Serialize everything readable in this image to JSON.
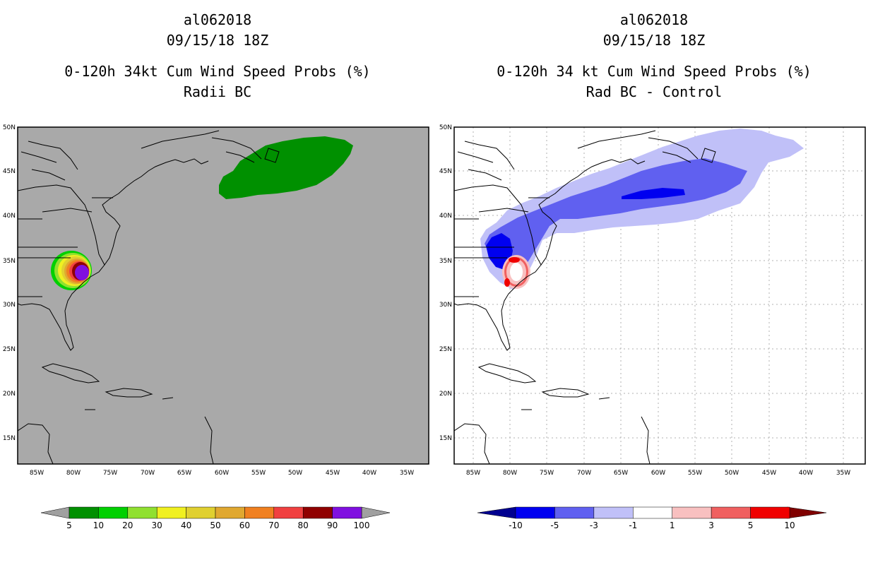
{
  "left_panel": {
    "storm_id": "al062018",
    "datetime": "09/15/18 18Z",
    "product": "0-120h 34kt Cum Wind Speed Probs (%)",
    "subtitle": "Radii BC",
    "background_color": "#a9a9a9",
    "colorbar": {
      "labels": [
        "5",
        "10",
        "20",
        "30",
        "40",
        "50",
        "60",
        "70",
        "80",
        "90",
        "100"
      ],
      "colors": [
        "#009000",
        "#00d000",
        "#90e030",
        "#f0f020",
        "#e0d030",
        "#e0a830",
        "#f08020",
        "#f04040",
        "#900000",
        "#8010e0"
      ],
      "arrow_color": "#a0a0a0"
    }
  },
  "right_panel": {
    "storm_id": "al062018",
    "datetime": "09/15/18 18Z",
    "product": "0-120h 34 kt Cum Wind Speed Probs (%)",
    "subtitle": "Rad BC - Control",
    "background_color": "#ffffff",
    "colorbar": {
      "labels": [
        "-10",
        "-5",
        "-3",
        "-1",
        "1",
        "3",
        "5",
        "10"
      ],
      "colors": [
        "#0000f0",
        "#6060f0",
        "#c0c0f8",
        "#ffffff",
        "#f8c0c0",
        "#f06060",
        "#f00000"
      ],
      "low_arrow_color": "#000090",
      "high_arrow_color": "#800000"
    }
  },
  "axes": {
    "lat_labels": [
      "50N",
      "45N",
      "40N",
      "35N",
      "30N",
      "25N",
      "20N",
      "15N"
    ],
    "lon_labels": [
      "85W",
      "80W",
      "75W",
      "70W",
      "65W",
      "60W",
      "55W",
      "50W",
      "45W",
      "40W",
      "35W"
    ]
  }
}
